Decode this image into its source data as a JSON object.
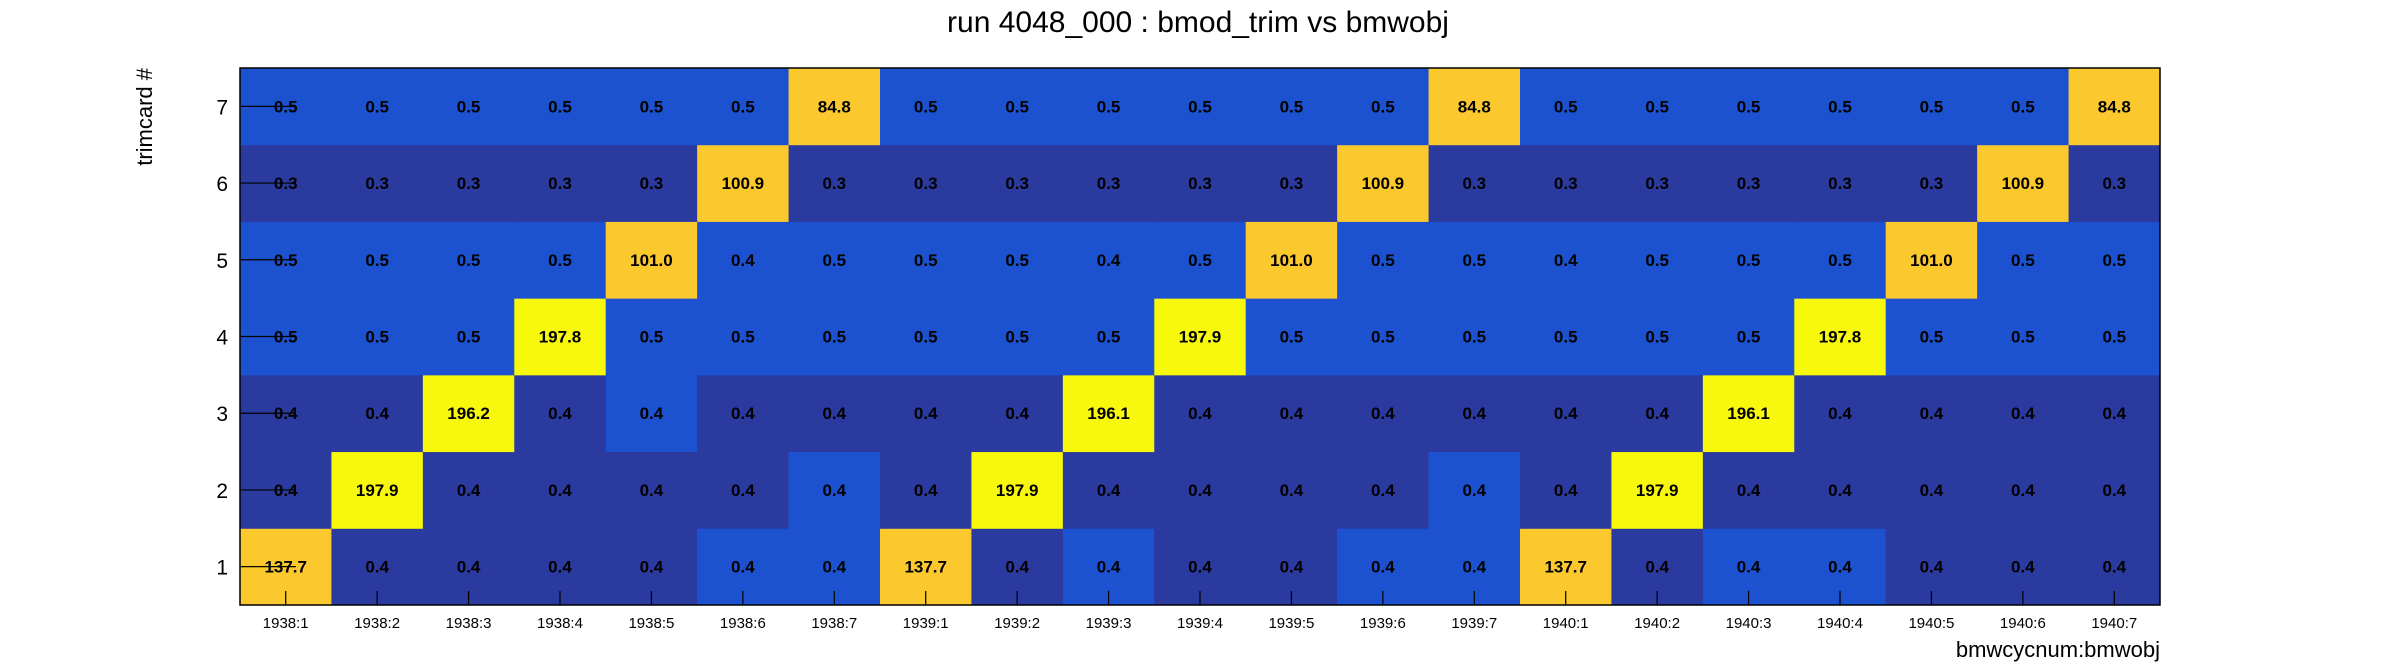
{
  "chart_data": {
    "type": "heatmap",
    "title": "run 4048_000 : bmod_trim vs bmwobj",
    "xlabel": "bmwcycnum:bmwobj",
    "ylabel": "trimcard #",
    "x_categories": [
      "1938:1",
      "1938:2",
      "1938:3",
      "1938:4",
      "1938:5",
      "1938:6",
      "1938:7",
      "1939:1",
      "1939:2",
      "1939:3",
      "1939:4",
      "1939:5",
      "1939:6",
      "1939:7",
      "1940:1",
      "1940:2",
      "1940:3",
      "1940:4",
      "1940:5",
      "1940:6",
      "1940:7"
    ],
    "y_categories": [
      "1",
      "2",
      "3",
      "4",
      "5",
      "6",
      "7"
    ],
    "values": [
      [
        137.7,
        0.4,
        0.4,
        0.4,
        0.4,
        0.4,
        0.4,
        137.7,
        0.4,
        0.4,
        0.4,
        0.4,
        0.4,
        0.4,
        137.7,
        0.4,
        0.4,
        0.4,
        0.4,
        0.4,
        0.4
      ],
      [
        0.4,
        197.9,
        0.4,
        0.4,
        0.4,
        0.4,
        0.4,
        0.4,
        197.9,
        0.4,
        0.4,
        0.4,
        0.4,
        0.4,
        0.4,
        197.9,
        0.4,
        0.4,
        0.4,
        0.4,
        0.4
      ],
      [
        0.4,
        0.4,
        196.2,
        0.4,
        0.4,
        0.4,
        0.4,
        0.4,
        0.4,
        196.1,
        0.4,
        0.4,
        0.4,
        0.4,
        0.4,
        0.4,
        196.1,
        0.4,
        0.4,
        0.4,
        0.4
      ],
      [
        0.5,
        0.5,
        0.5,
        197.8,
        0.5,
        0.5,
        0.5,
        0.5,
        0.5,
        0.5,
        197.9,
        0.5,
        0.5,
        0.5,
        0.5,
        0.5,
        0.5,
        197.8,
        0.5,
        0.5,
        0.5
      ],
      [
        0.5,
        0.5,
        0.5,
        0.5,
        101.0,
        0.4,
        0.5,
        0.5,
        0.5,
        0.4,
        0.5,
        101.0,
        0.5,
        0.5,
        0.4,
        0.5,
        0.5,
        0.5,
        101.0,
        0.5,
        0.5
      ],
      [
        0.3,
        0.3,
        0.3,
        0.3,
        0.3,
        100.9,
        0.3,
        0.3,
        0.3,
        0.3,
        0.3,
        0.3,
        100.9,
        0.3,
        0.3,
        0.3,
        0.3,
        0.3,
        0.3,
        100.9,
        0.3
      ],
      [
        0.5,
        0.5,
        0.5,
        0.5,
        0.5,
        0.5,
        84.8,
        0.5,
        0.5,
        0.5,
        0.5,
        0.5,
        0.5,
        84.8,
        0.5,
        0.5,
        0.5,
        0.5,
        0.5,
        0.5,
        84.8
      ]
    ],
    "colors": {
      "low_dark": "#2a3a9e",
      "low_mid": "#1c52cf",
      "orange": "#fbc92d",
      "yellow": "#f8f80c",
      "frame": "#000000"
    },
    "grid": false
  }
}
